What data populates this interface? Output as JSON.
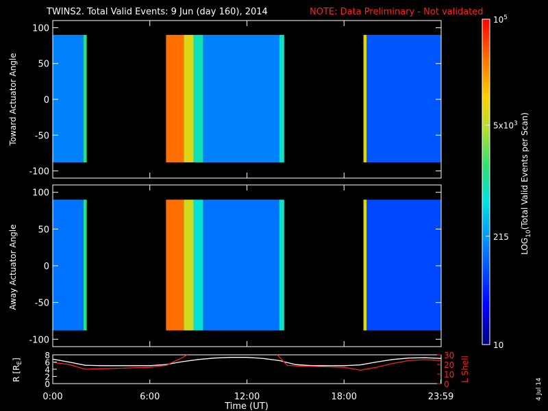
{
  "header": {
    "title": "TWINS2. Total Valid Events:  9 Jun (day 160), 2014",
    "note": "NOTE: Data Preliminary - Not validated"
  },
  "stamp": "4 Jul 14",
  "colors": {
    "background": "#000000",
    "axis": "#ffffff",
    "note": "#ff2020",
    "lshell": "#ff2020",
    "range": "#ffffff"
  },
  "chart_data": [
    {
      "type": "heatmap",
      "panel": "top",
      "ylabel": "Toward Actuator Angle",
      "xlim": [
        0,
        24
      ],
      "ylim": [
        -110,
        110
      ],
      "yticks": [
        100,
        50,
        0,
        -50,
        -100
      ],
      "angle_range": [
        -88,
        90
      ],
      "colorscale": "log",
      "segments": [
        {
          "t_start": 0.0,
          "t_end": 1.9,
          "level": 0.3
        },
        {
          "t_start": 1.9,
          "t_end": 2.1,
          "level": 0.52
        },
        {
          "t_start": 7.0,
          "t_end": 8.1,
          "level": 0.88
        },
        {
          "t_start": 8.1,
          "t_end": 8.7,
          "level": 0.72
        },
        {
          "t_start": 8.7,
          "t_end": 9.3,
          "level": 0.48
        },
        {
          "t_start": 9.3,
          "t_end": 14.0,
          "level": 0.3
        },
        {
          "t_start": 14.0,
          "t_end": 14.3,
          "level": 0.46
        },
        {
          "t_start": 19.2,
          "t_end": 19.4,
          "level": 0.72
        },
        {
          "t_start": 19.4,
          "t_end": 24.0,
          "level": 0.24
        }
      ],
      "data_gaps": [
        [
          2.1,
          7.0
        ],
        [
          14.3,
          19.2
        ]
      ]
    },
    {
      "type": "heatmap",
      "panel": "middle",
      "ylabel": "Away Actuator Angle",
      "xlim": [
        0,
        24
      ],
      "ylim": [
        -110,
        110
      ],
      "yticks": [
        100,
        50,
        0,
        -50,
        -100
      ],
      "angle_range": [
        -88,
        90
      ],
      "colorscale": "log",
      "segments": [
        {
          "t_start": 0.0,
          "t_end": 1.9,
          "level": 0.28
        },
        {
          "t_start": 1.9,
          "t_end": 2.1,
          "level": 0.52
        },
        {
          "t_start": 7.0,
          "t_end": 8.1,
          "level": 0.88
        },
        {
          "t_start": 8.1,
          "t_end": 8.7,
          "level": 0.7
        },
        {
          "t_start": 8.7,
          "t_end": 9.3,
          "level": 0.45
        },
        {
          "t_start": 9.3,
          "t_end": 14.0,
          "level": 0.28
        },
        {
          "t_start": 14.0,
          "t_end": 14.3,
          "level": 0.46
        },
        {
          "t_start": 19.2,
          "t_end": 19.4,
          "level": 0.72
        },
        {
          "t_start": 19.4,
          "t_end": 24.0,
          "level": 0.22
        }
      ],
      "data_gaps": [
        [
          2.1,
          7.0
        ],
        [
          14.3,
          19.2
        ]
      ]
    },
    {
      "type": "line",
      "panel": "orbit",
      "xlim": [
        0,
        24
      ],
      "x_ticks": [
        {
          "t": 0,
          "label": "0:00"
        },
        {
          "t": 6,
          "label": "6:00"
        },
        {
          "t": 12,
          "label": "12:00"
        },
        {
          "t": 18,
          "label": "18:00"
        },
        {
          "t": 23.98,
          "label": "23:59"
        }
      ],
      "xlabel": "Time (UT)",
      "ylabel_left": "R [R",
      "ylabel_left_sub": "E",
      "ylabel_left_close": "]",
      "ylabel_right": "L Shell",
      "left_axis": {
        "ylim": [
          0,
          8
        ],
        "ticks": [
          0,
          2,
          4,
          6,
          8
        ]
      },
      "right_axis": {
        "ylim": [
          0,
          30
        ],
        "ticks": [
          0,
          10,
          20,
          30
        ]
      },
      "series": [
        {
          "key": "range",
          "axis": "left",
          "x": [
            0,
            1,
            2,
            3,
            4,
            5,
            6,
            7,
            8,
            9,
            10,
            11,
            12,
            13,
            14,
            15,
            16,
            17,
            18,
            19,
            20,
            21,
            22,
            23,
            24
          ],
          "y": [
            6.8,
            6.0,
            5.1,
            5.0,
            5.0,
            5.0,
            5.0,
            5.3,
            6.1,
            6.7,
            7.1,
            7.3,
            7.3,
            7.0,
            6.4,
            5.3,
            5.0,
            5.0,
            5.0,
            5.2,
            6.0,
            6.7,
            7.1,
            7.2,
            7.0
          ]
        },
        {
          "key": "lshell",
          "axis": "right",
          "x": [
            0,
            1,
            2,
            3,
            4,
            5,
            6,
            7,
            8,
            8.6,
            13.7,
            14.5,
            15,
            16,
            17,
            18,
            19,
            20,
            21,
            22,
            23,
            24
          ],
          "y": [
            22,
            20,
            15,
            15.5,
            16,
            16.5,
            17,
            19,
            27,
            33,
            33,
            19,
            18.5,
            18,
            17.5,
            17,
            14,
            17,
            21,
            24,
            25,
            24
          ]
        }
      ]
    },
    {
      "type": "heatmap",
      "panel": "colorbar",
      "label_prefix": "LOG",
      "label_sub": "10",
      "label_suffix": "(Total Valid Events per Scan)",
      "scale": "log",
      "range": [
        10,
        100000
      ],
      "ticks": [
        {
          "value": 100000,
          "base": "10",
          "exp": "5"
        },
        {
          "value": 5000,
          "base": "5x10",
          "exp": "3"
        },
        {
          "value": 215,
          "base": "215",
          "exp": ""
        },
        {
          "value": 10,
          "base": "10",
          "exp": ""
        }
      ]
    }
  ]
}
